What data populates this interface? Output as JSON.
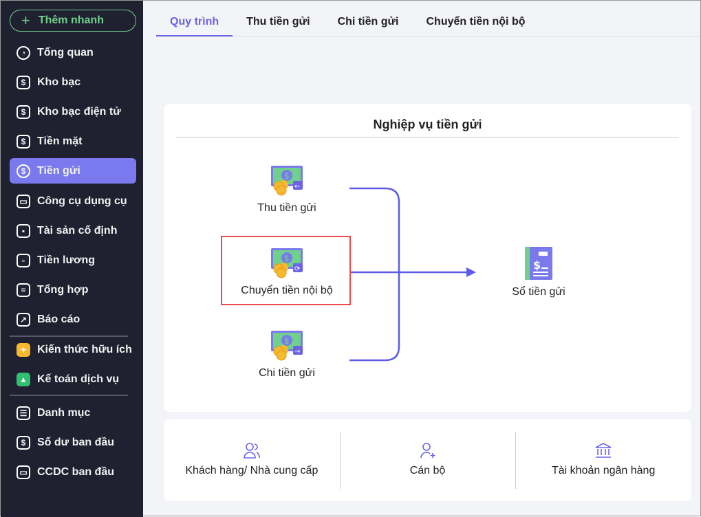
{
  "sidebar": {
    "quick_add": "Thêm nhanh",
    "items": [
      {
        "label": "Tổng quan",
        "icon": "pie-chart-icon"
      },
      {
        "label": "Kho bạc",
        "icon": "safe-icon"
      },
      {
        "label": "Kho bạc điện tử",
        "icon": "e-treasury-icon"
      },
      {
        "label": "Tiền mặt",
        "icon": "cash-bag-icon"
      },
      {
        "label": "Tiền gửi",
        "icon": "deposit-icon",
        "active": true
      },
      {
        "label": "Công cụ dụng cụ",
        "icon": "tools-icon"
      },
      {
        "label": "Tài sản cố định",
        "icon": "truck-icon"
      },
      {
        "label": "Tiền lương",
        "icon": "briefcase-icon"
      },
      {
        "label": "Tổng hợp",
        "icon": "document-icon"
      },
      {
        "label": "Báo cáo",
        "icon": "report-icon"
      },
      {
        "label": "Kiến thức hữu ích",
        "icon": "knowledge-icon"
      },
      {
        "label": "Kế toán dịch vụ",
        "icon": "service-icon"
      },
      {
        "label": "Danh mục",
        "icon": "list-icon"
      },
      {
        "label": "Số dư ban đầu",
        "icon": "balance-icon"
      },
      {
        "label": "CCDC ban đầu",
        "icon": "tools-initial-icon"
      }
    ]
  },
  "tabs": [
    "Quy trình",
    "Thu tiền gửi",
    "Chi tiền gửi",
    "Chuyển tiền nội bộ"
  ],
  "flow": {
    "title": "Nghiệp vụ tiền gửi",
    "sources": [
      "Thu tiền gửi",
      "Chuyển tiền nội bộ",
      "Chi tiền gửi"
    ],
    "target": "Sổ tiền gửi",
    "highlighted": "Chuyển tiền nội bộ"
  },
  "shortcuts": [
    "Khách hàng/ Nhà cung cấp",
    "Cán bộ",
    "Tài khoản ngân hàng"
  ],
  "colors": {
    "accent": "#6c63e6",
    "sidebar": "#1f2030",
    "highlight": "#f0474a",
    "quick_add": "#6fd18b"
  }
}
